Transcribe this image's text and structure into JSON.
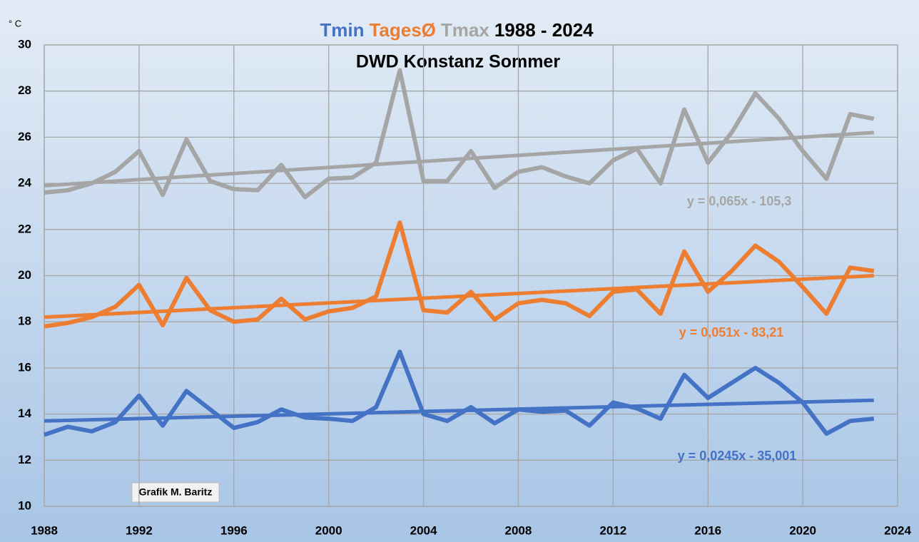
{
  "chart_data": {
    "type": "line",
    "title_parts": [
      {
        "text": "Tmin",
        "color": "#4472c4"
      },
      {
        "text": "TagesØ",
        "color": "#ed7d31"
      },
      {
        "text": "Tmax",
        "color": "#a5a5a5"
      },
      {
        "text": "1988 - 2024",
        "color": "#000000"
      }
    ],
    "subtitle": "DWD Konstanz Sommer",
    "y_unit": "° C",
    "annotation": "Grafik M. Baritz",
    "x": [
      1988,
      1989,
      1990,
      1991,
      1992,
      1993,
      1994,
      1995,
      1996,
      1997,
      1998,
      1999,
      2000,
      2001,
      2002,
      2003,
      2004,
      2005,
      2006,
      2007,
      2008,
      2009,
      2010,
      2011,
      2012,
      2013,
      2014,
      2015,
      2016,
      2017,
      2018,
      2019,
      2020,
      2021,
      2022,
      2023
    ],
    "series": [
      {
        "color": "#a5a5a5",
        "values": [
          23.6,
          23.7,
          24.0,
          24.5,
          25.4,
          23.5,
          25.9,
          24.1,
          23.75,
          23.7,
          24.8,
          23.4,
          24.2,
          24.25,
          24.9,
          28.9,
          24.1,
          24.1,
          25.4,
          23.8,
          24.5,
          24.7,
          24.3,
          24.0,
          25.0,
          25.5,
          24.0,
          27.2,
          24.9,
          26.2,
          27.9,
          26.8,
          25.4,
          24.2,
          27.0,
          26.8
        ],
        "trend": {
          "x": [
            1988,
            2023
          ],
          "values": [
            23.9,
            26.2
          ],
          "label": "y = 0,065x - 105,3"
        }
      },
      {
        "color": "#ed7d31",
        "values": [
          17.8,
          17.95,
          18.2,
          18.65,
          19.6,
          17.85,
          19.9,
          18.5,
          18.0,
          18.1,
          19.0,
          18.1,
          18.45,
          18.6,
          19.1,
          22.3,
          18.5,
          18.4,
          19.3,
          18.1,
          18.8,
          18.95,
          18.8,
          18.25,
          19.3,
          19.4,
          18.35,
          21.05,
          19.3,
          20.2,
          21.3,
          20.6,
          19.5,
          18.35,
          20.35,
          20.2
        ],
        "trend": {
          "x": [
            1988,
            2023
          ],
          "values": [
            18.2,
            20.0
          ],
          "label": "y = 0,051x - 83,21"
        }
      },
      {
        "color": "#4472c4",
        "values": [
          13.1,
          13.45,
          13.25,
          13.65,
          14.8,
          13.5,
          15.0,
          14.2,
          13.4,
          13.65,
          14.2,
          13.85,
          13.8,
          13.7,
          14.3,
          16.7,
          14.0,
          13.7,
          14.3,
          13.6,
          14.2,
          14.1,
          14.15,
          13.5,
          14.5,
          14.25,
          13.8,
          15.7,
          14.7,
          15.35,
          16.0,
          15.35,
          14.5,
          13.15,
          13.7,
          13.8
        ],
        "trend": {
          "x": [
            1988,
            2023
          ],
          "values": [
            13.7,
            14.6
          ],
          "label": "y = 0,0245x - 35,001"
        }
      }
    ],
    "xlim": [
      1988,
      2024
    ],
    "xticks": [
      1988,
      1992,
      1996,
      2000,
      2004,
      2008,
      2012,
      2016,
      2020,
      2024
    ],
    "ylim": [
      10,
      30
    ],
    "yticks": [
      10,
      12,
      14,
      16,
      18,
      20,
      22,
      24,
      26,
      28,
      30
    ],
    "grid": true
  }
}
